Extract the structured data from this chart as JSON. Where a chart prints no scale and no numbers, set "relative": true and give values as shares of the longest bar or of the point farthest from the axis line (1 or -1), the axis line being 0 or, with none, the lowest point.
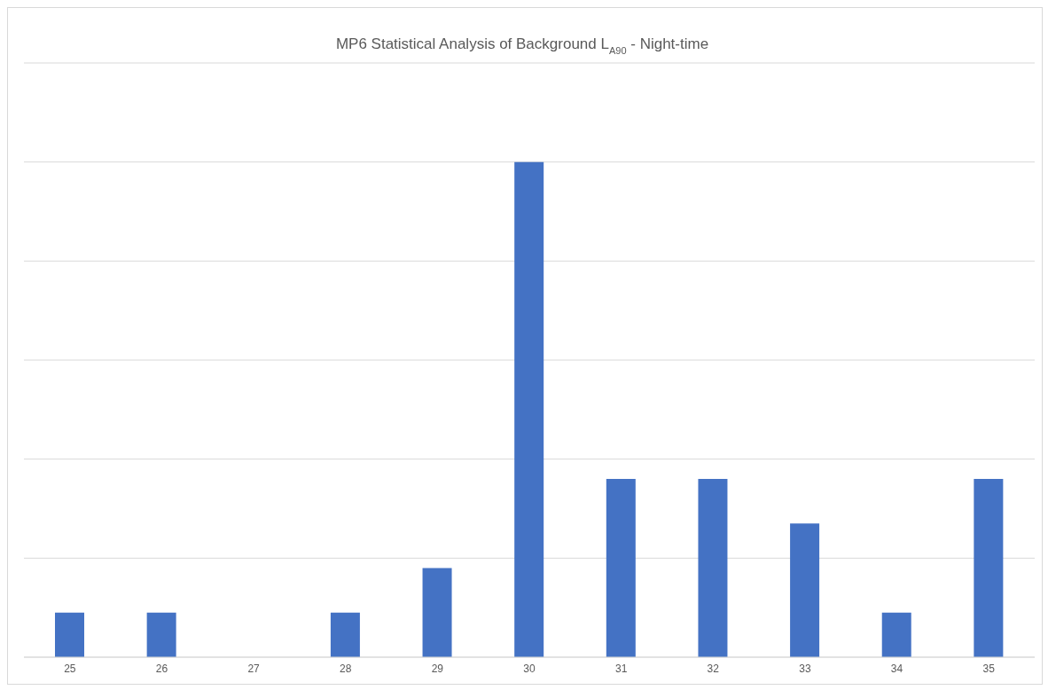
{
  "chart_data": {
    "type": "bar",
    "title": "MP6 Statistical Analysis of Background L$_{A90}$ - Night-time",
    "categories": [
      "25",
      "26",
      "27",
      "28",
      "29",
      "30",
      "31",
      "32",
      "33",
      "34",
      "35"
    ],
    "values": [
      0.09,
      0.09,
      0,
      0.09,
      0.18,
      1,
      0.36,
      0.36,
      0.27,
      0.09,
      0.36
    ],
    "color": "#4472c4",
    "relative": true,
    "grid": "y"
  }
}
